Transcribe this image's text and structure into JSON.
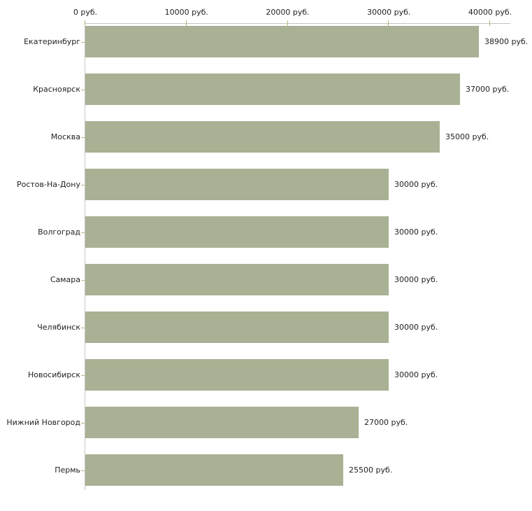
{
  "chart_data": {
    "type": "bar",
    "orientation": "horizontal",
    "title": "",
    "xlabel": "",
    "ylabel": "",
    "categories": [
      "Екатеринбург",
      "Красноярск",
      "Москва",
      "Ростов-На-Дону",
      "Волгоград",
      "Самара",
      "Челябинск",
      "Новосибирск",
      "Нижний Новгород",
      "Пермь"
    ],
    "values": [
      38900,
      37000,
      35000,
      30000,
      30000,
      30000,
      30000,
      30000,
      27000,
      25500
    ],
    "value_labels": [
      "38900 руб.",
      "37000 руб.",
      "35000 руб.",
      "30000 руб.",
      "30000 руб.",
      "30000 руб.",
      "30000 руб.",
      "30000 руб.",
      "27000 руб.",
      "25500 руб."
    ],
    "x_ticks": [
      0,
      10000,
      20000,
      30000,
      40000
    ],
    "x_tick_labels": [
      "0 руб.",
      "10000 руб.",
      "20000 руб.",
      "30000 руб.",
      "40000 руб."
    ],
    "xlim": [
      0,
      40000
    ],
    "grid": false,
    "legend": false,
    "bar_color": "#a9b194",
    "axis_line_color": "#c6c6c6",
    "tick_mark_color": "#b3b47c",
    "text_color": "#222222",
    "background_color": "#ffffff"
  }
}
